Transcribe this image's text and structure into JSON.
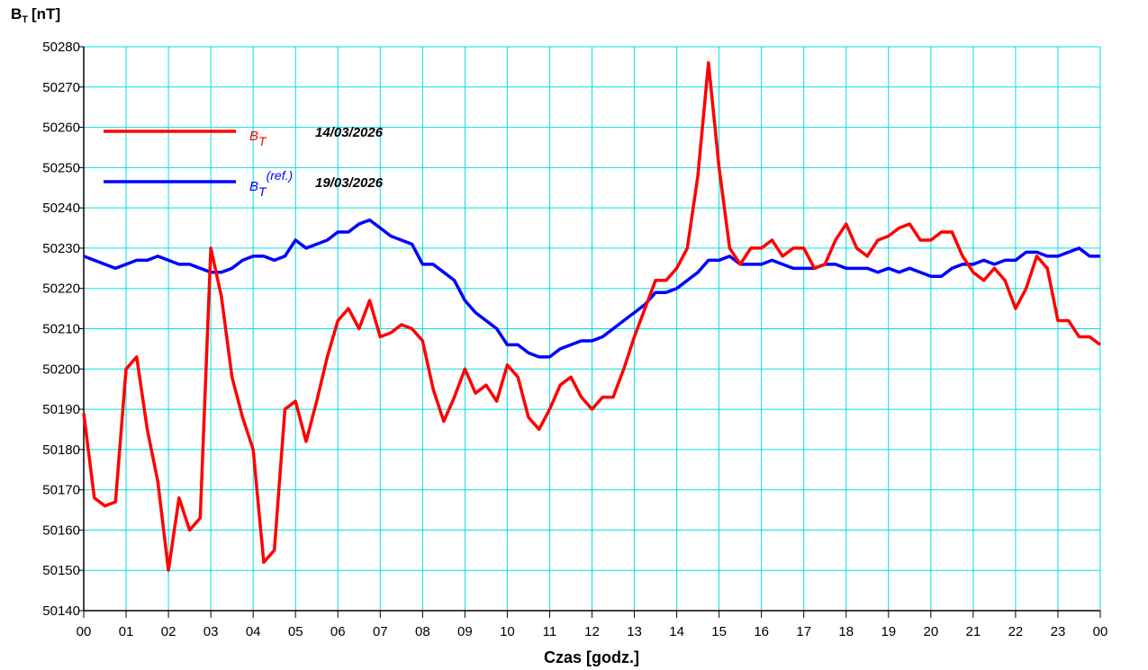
{
  "chart_data": {
    "type": "line",
    "y_label": {
      "main": "B",
      "sub": "T",
      "unit": "[nT]"
    },
    "x_label": "Czas [godz.]",
    "xlim": [
      0,
      24
    ],
    "xticks": [
      {
        "value": 0,
        "label": "00"
      },
      {
        "value": 1,
        "label": "01"
      },
      {
        "value": 2,
        "label": "02"
      },
      {
        "value": 3,
        "label": "03"
      },
      {
        "value": 4,
        "label": "04"
      },
      {
        "value": 5,
        "label": "05"
      },
      {
        "value": 6,
        "label": "06"
      },
      {
        "value": 7,
        "label": "07"
      },
      {
        "value": 8,
        "label": "08"
      },
      {
        "value": 9,
        "label": "09"
      },
      {
        "value": 10,
        "label": "10"
      },
      {
        "value": 11,
        "label": "11"
      },
      {
        "value": 12,
        "label": "12"
      },
      {
        "value": 13,
        "label": "13"
      },
      {
        "value": 14,
        "label": "14"
      },
      {
        "value": 15,
        "label": "15"
      },
      {
        "value": 16,
        "label": "16"
      },
      {
        "value": 17,
        "label": "17"
      },
      {
        "value": 18,
        "label": "18"
      },
      {
        "value": 19,
        "label": "19"
      },
      {
        "value": 20,
        "label": "20"
      },
      {
        "value": 21,
        "label": "21"
      },
      {
        "value": 22,
        "label": "22"
      },
      {
        "value": 23,
        "label": "23"
      },
      {
        "value": 24,
        "label": "00"
      }
    ],
    "ylim": [
      50140,
      50280
    ],
    "yticks": [
      50140,
      50150,
      50160,
      50170,
      50180,
      50190,
      50200,
      50210,
      50220,
      50230,
      50240,
      50250,
      50260,
      50270,
      50280
    ],
    "grid": true,
    "grid_color": "#00e0e0",
    "legend": "upper-left",
    "x": [
      0,
      0.25,
      0.5,
      0.75,
      1,
      1.25,
      1.5,
      1.75,
      2,
      2.25,
      2.5,
      2.75,
      3,
      3.25,
      3.5,
      3.75,
      4,
      4.25,
      4.5,
      4.75,
      5,
      5.25,
      5.5,
      5.75,
      6,
      6.25,
      6.5,
      6.75,
      7,
      7.25,
      7.5,
      7.75,
      8,
      8.25,
      8.5,
      8.75,
      9,
      9.25,
      9.5,
      9.75,
      10,
      10.25,
      10.5,
      10.75,
      11,
      11.25,
      11.5,
      11.75,
      12,
      12.25,
      12.5,
      12.75,
      13,
      13.25,
      13.5,
      13.75,
      14,
      14.25,
      14.5,
      14.75,
      15,
      15.25,
      15.5,
      15.75,
      16,
      16.25,
      16.5,
      16.75,
      17,
      17.25,
      17.5,
      17.75,
      18,
      18.25,
      18.5,
      18.75,
      19,
      19.25,
      19.5,
      19.75,
      20,
      20.25,
      20.5,
      20.75,
      21,
      21.25,
      21.5,
      21.75,
      22,
      22.25,
      22.5,
      22.75,
      23,
      23.25,
      23.5,
      23.75,
      24
    ],
    "series": [
      {
        "name": "B",
        "subscript": "T",
        "date": "14/03/2026",
        "color": "#ff0000",
        "values": [
          50189,
          50168,
          50166,
          50167,
          50200,
          50203,
          50185,
          50172,
          50150,
          50168,
          50160,
          50163,
          50230,
          50218,
          50198,
          50188,
          50180,
          50152,
          50155,
          50190,
          50192,
          50182,
          50192,
          50203,
          50212,
          50215,
          50210,
          50217,
          50208,
          50209,
          50211,
          50210,
          50207,
          50195,
          50187,
          50193,
          50200,
          50194,
          50196,
          50192,
          50201,
          50198,
          50188,
          50185,
          50190,
          50196,
          50198,
          50193,
          50190,
          50193,
          50193,
          50200,
          50208,
          50215,
          50222,
          50222,
          50225,
          50230,
          50248,
          50276,
          50250,
          50230,
          50226,
          50230,
          50230,
          50232,
          50228,
          50230,
          50230,
          50225,
          50226,
          50232,
          50236,
          50230,
          50228,
          50232,
          50233,
          50235,
          50236,
          50232,
          50232,
          50234,
          50234,
          50228,
          50224,
          50222,
          50225,
          50222,
          50215,
          50220,
          50228,
          50225,
          50212,
          50212,
          50208,
          50208,
          50206
        ]
      },
      {
        "name": "B",
        "subscript": "T",
        "superscript": "(ref.)",
        "date": "19/03/2026",
        "color": "#0000ff",
        "values": [
          50228,
          50227,
          50226,
          50225,
          50226,
          50227,
          50227,
          50228,
          50227,
          50226,
          50226,
          50225,
          50224,
          50224,
          50225,
          50227,
          50228,
          50228,
          50227,
          50228,
          50232,
          50230,
          50231,
          50232,
          50234,
          50234,
          50236,
          50237,
          50235,
          50233,
          50232,
          50231,
          50226,
          50226,
          50224,
          50222,
          50217,
          50214,
          50212,
          50210,
          50206,
          50206,
          50204,
          50203,
          50203,
          50205,
          50206,
          50207,
          50207,
          50208,
          50210,
          50212,
          50214,
          50216,
          50219,
          50219,
          50220,
          50222,
          50224,
          50227,
          50227,
          50228,
          50226,
          50226,
          50226,
          50227,
          50226,
          50225,
          50225,
          50225,
          50226,
          50226,
          50225,
          50225,
          50225,
          50224,
          50225,
          50224,
          50225,
          50224,
          50223,
          50223,
          50225,
          50226,
          50226,
          50227,
          50226,
          50227,
          50227,
          50229,
          50229,
          50228,
          50228,
          50229,
          50230,
          50228,
          50228
        ]
      }
    ]
  }
}
